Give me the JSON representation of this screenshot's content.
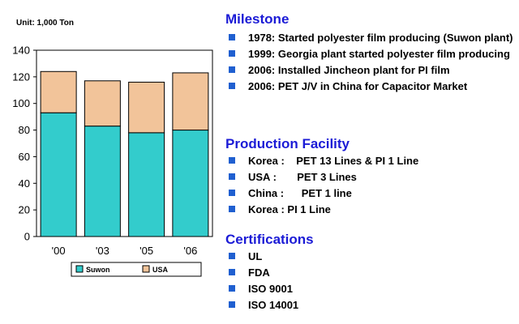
{
  "unit_label": "Unit: 1,000 Ton",
  "colors": {
    "suwon": "#33cccc",
    "usa": "#f2c49a",
    "heading": "#1b1bd6",
    "bullet": "#1f5fd0"
  },
  "chart_data": {
    "type": "bar",
    "stacked": true,
    "categories": [
      "'00",
      "'03",
      "'05",
      "'06"
    ],
    "series": [
      {
        "name": "Suwon",
        "values": [
          93,
          83,
          78,
          80
        ]
      },
      {
        "name": "USA",
        "values": [
          31,
          34,
          38,
          43
        ]
      }
    ],
    "ylim": [
      0,
      140
    ],
    "yticks": [
      "0",
      "20",
      "40",
      "60",
      "80",
      "100",
      "120",
      "140"
    ],
    "legend": "bottom",
    "grid": false
  },
  "sections": [
    {
      "title": "Milestone",
      "items": [
        "1978: Started polyester film producing (Suwon plant)",
        "1999: Georgia plant started polyester film producing",
        "2006: Installed Jincheon plant for PI film",
        "2006: PET J/V in China for Capacitor Market"
      ]
    },
    {
      "title": "Production Facility",
      "items": [
        "Korea :    PET 13 Lines & PI 1 Line",
        "USA :       PET 3 Lines",
        "China :      PET 1 line",
        "Korea : PI 1 Line"
      ]
    },
    {
      "title": "Certifications",
      "items": [
        "UL",
        "FDA",
        "ISO 9001",
        "ISO 14001"
      ]
    }
  ]
}
